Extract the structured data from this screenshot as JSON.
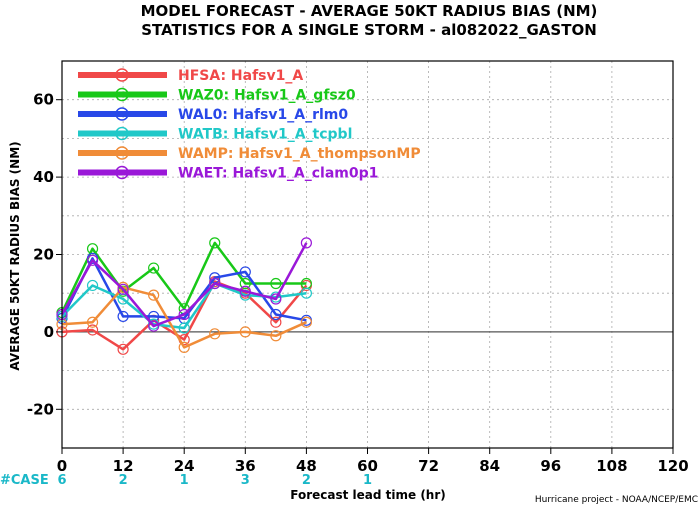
{
  "chart_data": {
    "type": "line",
    "title": "MODEL FORECAST - AVERAGE 50KT RADIUS BIAS (NM)",
    "subtitle": "STATISTICS FOR A SINGLE STORM - al082022_GASTON",
    "xlabel": "Forecast lead time (hr)",
    "ylabel": "AVERAGE 50KT RADIUS BIAS (NM)",
    "xlim": [
      0,
      120
    ],
    "ylim": [
      -30,
      70
    ],
    "xticks": [
      0,
      12,
      24,
      36,
      48,
      60,
      72,
      84,
      96,
      108,
      120
    ],
    "yticks": [
      -20,
      0,
      20,
      40,
      60
    ],
    "ytick_labels": [
      "-20",
      "0",
      "20",
      "40",
      "60"
    ],
    "grid": true,
    "legend_position": "top-left",
    "x": [
      0,
      6,
      12,
      18,
      24,
      30,
      36,
      42,
      48
    ],
    "series": [
      {
        "name": "HFSA: Hafsv1_A",
        "color": "#f04848",
        "values": [
          0,
          0.5,
          -4.5,
          3,
          -2,
          13,
          10,
          2.5,
          12
        ]
      },
      {
        "name": "WAZ0: Hafsv1_A_gfsz0",
        "color": "#18c818",
        "values": [
          5,
          21.5,
          10.5,
          16.5,
          6,
          23,
          12.5,
          12.5,
          12.5
        ]
      },
      {
        "name": "WAL0: Hafsv1_A_rlm0",
        "color": "#2848e8",
        "values": [
          3.5,
          19,
          4,
          4,
          3.5,
          14,
          15.5,
          4.5,
          3
        ]
      },
      {
        "name": "WATB: Hafsv1_A_tcpbl",
        "color": "#20c8c8",
        "values": [
          4,
          12,
          8.5,
          2,
          1,
          12.5,
          9.5,
          9,
          10
        ]
      },
      {
        "name": "WAMP: Hafsv1_A_thompsonMP",
        "color": "#f08c38",
        "values": [
          2,
          2.5,
          11.5,
          9.5,
          -4,
          -0.5,
          0,
          -1,
          2.5
        ]
      },
      {
        "name": "WAET: Hafsv1_A_clam0p1",
        "color": "#9a18d8",
        "values": [
          4.5,
          18.5,
          11,
          1.5,
          4.5,
          12.5,
          10.5,
          8.5,
          23
        ]
      }
    ],
    "case_label": "#CASE",
    "case_counts": [
      {
        "x": 0,
        "n": "6"
      },
      {
        "x": 12,
        "n": "2"
      },
      {
        "x": 24,
        "n": "1"
      },
      {
        "x": 36,
        "n": "3"
      },
      {
        "x": 48,
        "n": "2"
      },
      {
        "x": 60,
        "n": "1"
      }
    ],
    "credit": "Hurricane project - NOAA/NCEP/EMC"
  }
}
